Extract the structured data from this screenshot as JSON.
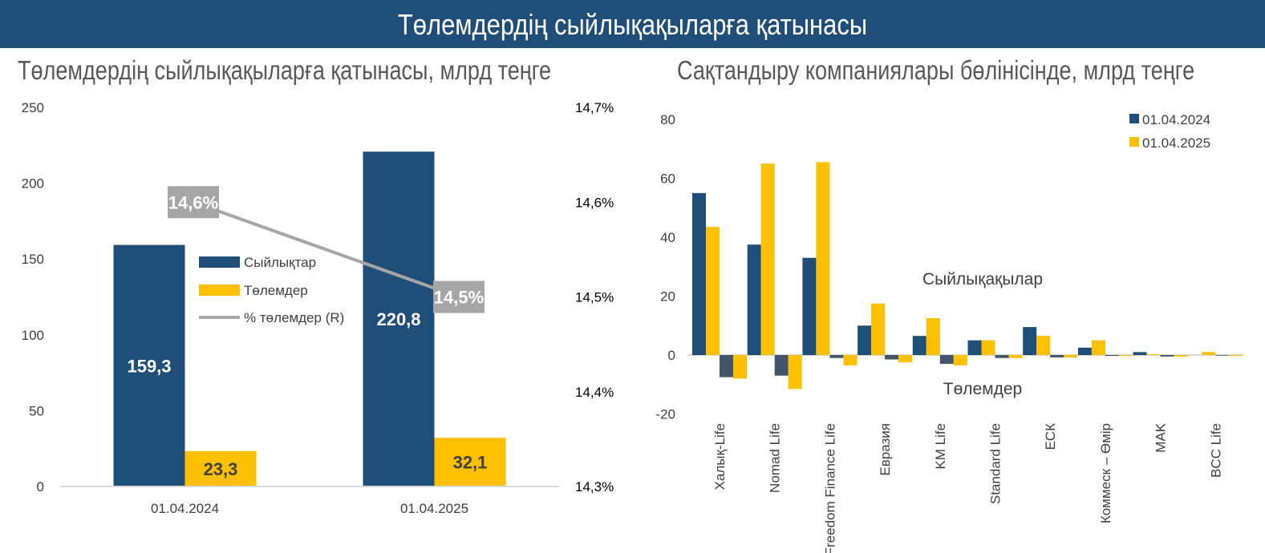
{
  "banner": {
    "title": "Төлемдердің сыйлықақыларға қатынасы"
  },
  "chart_data": [
    {
      "type": "bar",
      "title": "Төлемдердің сыйлықақыларға қатынасы, млрд теңге",
      "categories": [
        "01.04.2024",
        "01.04.2025"
      ],
      "series": [
        {
          "name": "Сыйлықтар",
          "values": [
            159.3,
            220.8
          ],
          "value_labels": [
            "159,3",
            "220,8"
          ],
          "color": "#1f4e79"
        },
        {
          "name": "Төлемдер",
          "values": [
            23.3,
            32.1
          ],
          "value_labels": [
            "23,3",
            "32,1"
          ],
          "color": "#ffc000"
        }
      ],
      "line_series": {
        "name": "% төлемдер (R)",
        "values": [
          14.6,
          14.5
        ],
        "value_labels": [
          "14,6%",
          "14,5%"
        ],
        "color": "#a6a6a6",
        "axis": "right"
      },
      "y_left": {
        "range": [
          0,
          250
        ],
        "ticks": [
          "0",
          "50",
          "100",
          "150",
          "200",
          "250"
        ]
      },
      "y_right": {
        "range": [
          14.3,
          14.7
        ],
        "ticks": [
          "14,3%",
          "14,4%",
          "14,5%",
          "14,6%",
          "14,7%"
        ]
      },
      "legend_position": "center"
    },
    {
      "type": "bar",
      "title": "Сақтандыру компаниялары бөлінісінде, млрд теңге",
      "categories": [
        "Халық-Life",
        "Nomad Life",
        "Freedom Finance Life",
        "Евразия",
        "KM Life",
        "Standard Life",
        "ЕСК",
        "Коммеск – Өмір",
        "MAK",
        "BCC Life"
      ],
      "series": [
        {
          "name": "01.04.2024",
          "color": "#1f4e79",
          "premiums": [
            55.0,
            37.5,
            33.0,
            10.0,
            6.5,
            5.0,
            9.5,
            2.5,
            1.0,
            0.0
          ],
          "payments": [
            -7.5,
            -7.0,
            -1.0,
            -1.5,
            -3.0,
            -1.0,
            -0.8,
            -0.3,
            -0.5,
            -0.2
          ]
        },
        {
          "name": "01.04.2025",
          "color": "#ffc000",
          "premiums": [
            43.5,
            65.0,
            65.5,
            17.5,
            12.5,
            5.0,
            6.5,
            5.0,
            0.3,
            1.0
          ],
          "payments": [
            -8.0,
            -11.5,
            -3.5,
            -2.5,
            -3.5,
            -1.0,
            -0.8,
            -0.3,
            -0.5,
            -0.3
          ]
        }
      ],
      "ylim": [
        -20,
        80
      ],
      "y_ticks": [
        "-20",
        "0",
        "20",
        "40",
        "60",
        "80"
      ],
      "annotations": {
        "premiums": "Сыйлықақылар",
        "payments": "Төлемдер"
      },
      "legend_position": "top-right"
    }
  ]
}
